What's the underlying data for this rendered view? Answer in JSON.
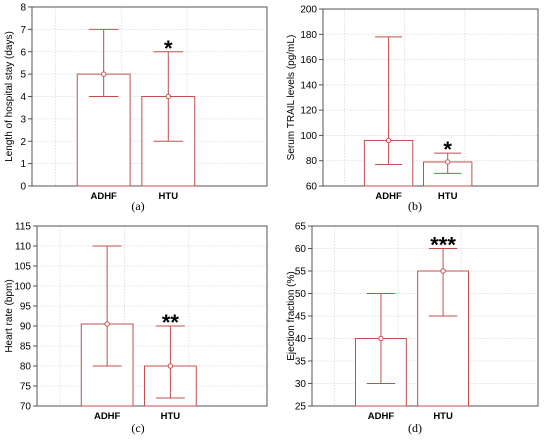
{
  "chart_data": [
    {
      "type": "bar",
      "panel_label": "(a)",
      "ylabel": "Length of hospital stay (days)",
      "ylim": [
        0,
        8
      ],
      "yticks": [
        0,
        1,
        2,
        3,
        4,
        5,
        6,
        7,
        8
      ],
      "categories": [
        "ADHF",
        "HTU"
      ],
      "values": [
        5,
        4
      ],
      "error_low": [
        4,
        2
      ],
      "error_high": [
        7,
        6
      ],
      "significance": [
        "",
        "*"
      ],
      "grid": true,
      "bar_color": "#c0504d"
    },
    {
      "type": "bar",
      "panel_label": "(b)",
      "ylabel": "Serum TRAIL levels (pg/mL)",
      "ylim": [
        60,
        200
      ],
      "yticks": [
        60,
        80,
        100,
        120,
        140,
        160,
        180,
        200
      ],
      "categories": [
        "ADHF",
        "HTU"
      ],
      "values": [
        96,
        79
      ],
      "error_low": [
        77,
        70
      ],
      "error_high": [
        178,
        86
      ],
      "significance": [
        "",
        "*"
      ],
      "grid": true,
      "bar_color": "#c0504d"
    },
    {
      "type": "bar",
      "panel_label": "(c)",
      "ylabel": "Heart rate (bpm)",
      "ylim": [
        70,
        115
      ],
      "yticks": [
        70,
        75,
        80,
        85,
        90,
        95,
        100,
        105,
        110,
        115
      ],
      "categories": [
        "ADHF",
        "HTU"
      ],
      "values": [
        90.5,
        80
      ],
      "error_low": [
        80,
        72
      ],
      "error_high": [
        110,
        90
      ],
      "significance": [
        "",
        "**"
      ],
      "grid": true,
      "bar_color": "#c0504d"
    },
    {
      "type": "bar",
      "panel_label": "(d)",
      "ylabel": "Ejection  fraction (%)",
      "ylim": [
        25,
        65
      ],
      "yticks": [
        25,
        30,
        35,
        40,
        45,
        50,
        55,
        60,
        65
      ],
      "categories": [
        "ADHF",
        "HTU"
      ],
      "values": [
        40,
        55
      ],
      "error_low": [
        30,
        45
      ],
      "error_high": [
        50,
        60
      ],
      "significance": [
        "",
        "***"
      ],
      "grid": true,
      "bar_color": "#c0504d"
    }
  ]
}
